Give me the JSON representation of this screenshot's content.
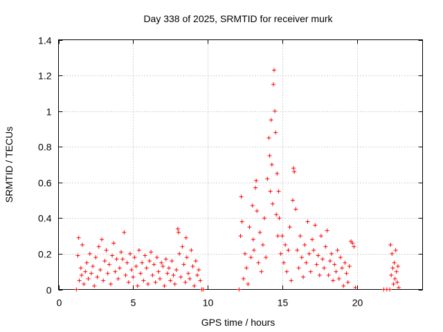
{
  "chart_data": {
    "type": "scatter",
    "title": "Day 338 of 2025, SRMTID for receiver murk",
    "xlabel": "GPS time / hours",
    "ylabel": "SRMTID / TECUs",
    "xlim": [
      0,
      24.4
    ],
    "ylim": [
      0,
      1.4
    ],
    "xticks": [
      0,
      5,
      10,
      15,
      20
    ],
    "xtick_labels": [
      "0",
      "5",
      "10",
      "15",
      "20"
    ],
    "yticks": [
      0,
      0.2,
      0.4,
      0.6,
      0.8,
      1.0,
      1.2,
      1.4
    ],
    "ytick_labels": [
      "0",
      "0.2",
      "0.4",
      "0.6",
      "0.8",
      "1",
      "1.2",
      "1.4"
    ],
    "grid": true,
    "marker": "plus",
    "marker_color": "#ff0000",
    "series": [
      {
        "name": "SRMTID",
        "points": [
          [
            1.2,
            0.0
          ],
          [
            1.3,
            0.19
          ],
          [
            1.35,
            0.29
          ],
          [
            1.4,
            0.05
          ],
          [
            1.5,
            0.12
          ],
          [
            1.55,
            0.08
          ],
          [
            1.6,
            0.25
          ],
          [
            1.7,
            0.03
          ],
          [
            1.8,
            0.1
          ],
          [
            1.9,
            0.15
          ],
          [
            2.0,
            0.06
          ],
          [
            2.1,
            0.2
          ],
          [
            2.2,
            0.09
          ],
          [
            2.3,
            0.13
          ],
          [
            2.4,
            0.02
          ],
          [
            2.5,
            0.18
          ],
          [
            2.6,
            0.07
          ],
          [
            2.7,
            0.24
          ],
          [
            2.8,
            0.11
          ],
          [
            2.9,
            0.28
          ],
          [
            3.0,
            0.05
          ],
          [
            3.1,
            0.16
          ],
          [
            3.2,
            0.22
          ],
          [
            3.3,
            0.09
          ],
          [
            3.4,
            0.14
          ],
          [
            3.5,
            0.03
          ],
          [
            3.6,
            0.19
          ],
          [
            3.7,
            0.26
          ],
          [
            3.8,
            0.1
          ],
          [
            3.9,
            0.17
          ],
          [
            4.0,
            0.06
          ],
          [
            4.1,
            0.12
          ],
          [
            4.2,
            0.21
          ],
          [
            4.3,
            0.17
          ],
          [
            4.4,
            0.32
          ],
          [
            4.5,
            0.08
          ],
          [
            4.6,
            0.15
          ],
          [
            4.7,
            0.04
          ],
          [
            4.8,
            0.2
          ],
          [
            4.9,
            0.11
          ],
          [
            5.0,
            0.07
          ],
          [
            5.1,
            0.18
          ],
          [
            5.2,
            0.13
          ],
          [
            5.3,
            0.02
          ],
          [
            5.4,
            0.22
          ],
          [
            5.5,
            0.09
          ],
          [
            5.6,
            0.15
          ],
          [
            5.7,
            0.05
          ],
          [
            5.8,
            0.19
          ],
          [
            5.9,
            0.12
          ],
          [
            6.0,
            0.03
          ],
          [
            6.1,
            0.16
          ],
          [
            6.2,
            0.21
          ],
          [
            6.3,
            0.08
          ],
          [
            6.4,
            0.14
          ],
          [
            6.5,
            0.04
          ],
          [
            6.6,
            0.18
          ],
          [
            6.7,
            0.1
          ],
          [
            6.8,
            0.06
          ],
          [
            6.9,
            0.15
          ],
          [
            7.0,
            0.13
          ],
          [
            7.1,
            0.02
          ],
          [
            7.2,
            0.17
          ],
          [
            7.3,
            0.09
          ],
          [
            7.4,
            0.12
          ],
          [
            7.5,
            0.05
          ],
          [
            7.6,
            0.16
          ],
          [
            7.7,
            0.08
          ],
          [
            7.8,
            0.03
          ],
          [
            7.9,
            0.11
          ],
          [
            8.0,
            0.34
          ],
          [
            8.05,
            0.32
          ],
          [
            8.1,
            0.2
          ],
          [
            8.2,
            0.07
          ],
          [
            8.3,
            0.24
          ],
          [
            8.4,
            0.14
          ],
          [
            8.5,
            0.04
          ],
          [
            8.55,
            0.29
          ],
          [
            8.6,
            0.18
          ],
          [
            8.7,
            0.09
          ],
          [
            8.8,
            0.06
          ],
          [
            8.9,
            0.22
          ],
          [
            9.0,
            0.13
          ],
          [
            9.1,
            0.02
          ],
          [
            9.2,
            0.16
          ],
          [
            9.3,
            0.08
          ],
          [
            9.4,
            0.11
          ],
          [
            9.5,
            0.05
          ],
          [
            9.6,
            0.0
          ],
          [
            9.7,
            0.0
          ],
          [
            12.1,
            0.0
          ],
          [
            12.2,
            0.3
          ],
          [
            12.25,
            0.52
          ],
          [
            12.3,
            0.38
          ],
          [
            12.4,
            0.06
          ],
          [
            12.5,
            0.2
          ],
          [
            12.6,
            0.12
          ],
          [
            12.7,
            0.03
          ],
          [
            12.8,
            0.35
          ],
          [
            12.9,
            0.18
          ],
          [
            13.0,
            0.47
          ],
          [
            13.05,
            0.28
          ],
          [
            13.1,
            0.22
          ],
          [
            13.2,
            0.57
          ],
          [
            13.25,
            0.61
          ],
          [
            13.3,
            0.44
          ],
          [
            13.4,
            0.15
          ],
          [
            13.5,
            0.32
          ],
          [
            13.6,
            0.1
          ],
          [
            13.7,
            0.25
          ],
          [
            13.8,
            0.4
          ],
          [
            13.9,
            0.18
          ],
          [
            14.0,
            0.62
          ],
          [
            14.1,
            0.85
          ],
          [
            14.15,
            0.75
          ],
          [
            14.2,
            0.55
          ],
          [
            14.25,
            0.95
          ],
          [
            14.3,
            0.7
          ],
          [
            14.35,
            0.48
          ],
          [
            14.4,
            1.15
          ],
          [
            14.45,
            1.23
          ],
          [
            14.5,
            1.0
          ],
          [
            14.55,
            0.88
          ],
          [
            14.6,
            0.42
          ],
          [
            14.65,
            0.65
          ],
          [
            14.7,
            0.3
          ],
          [
            14.75,
            0.55
          ],
          [
            14.8,
            0.4
          ],
          [
            14.9,
            0.2
          ],
          [
            15.0,
            0.3
          ],
          [
            15.1,
            0.15
          ],
          [
            15.2,
            0.25
          ],
          [
            15.3,
            0.1
          ],
          [
            15.4,
            0.22
          ],
          [
            15.5,
            0.35
          ],
          [
            15.6,
            0.05
          ],
          [
            15.7,
            0.5
          ],
          [
            15.75,
            0.68
          ],
          [
            15.8,
            0.66
          ],
          [
            15.9,
            0.45
          ],
          [
            16.0,
            0.22
          ],
          [
            16.1,
            0.12
          ],
          [
            16.2,
            0.3
          ],
          [
            16.3,
            0.18
          ],
          [
            16.4,
            0.07
          ],
          [
            16.5,
            0.25
          ],
          [
            16.6,
            0.15
          ],
          [
            16.7,
            0.38
          ],
          [
            16.8,
            0.2
          ],
          [
            16.9,
            0.1
          ],
          [
            17.0,
            0.28
          ],
          [
            17.1,
            0.22
          ],
          [
            17.2,
            0.36
          ],
          [
            17.3,
            0.14
          ],
          [
            17.4,
            0.19
          ],
          [
            17.5,
            0.08
          ],
          [
            17.6,
            0.3
          ],
          [
            17.7,
            0.17
          ],
          [
            17.8,
            0.12
          ],
          [
            17.9,
            0.24
          ],
          [
            18.0,
            0.33
          ],
          [
            18.1,
            0.08
          ],
          [
            18.2,
            0.16
          ],
          [
            18.3,
            0.2
          ],
          [
            18.4,
            0.05
          ],
          [
            18.5,
            0.14
          ],
          [
            18.6,
            0.1
          ],
          [
            18.7,
            0.22
          ],
          [
            18.8,
            0.06
          ],
          [
            18.9,
            0.18
          ],
          [
            19.0,
            0.12
          ],
          [
            19.1,
            0.02
          ],
          [
            19.2,
            0.15
          ],
          [
            19.3,
            0.09
          ],
          [
            19.4,
            0.04
          ],
          [
            19.5,
            0.13
          ],
          [
            19.6,
            0.27
          ],
          [
            19.7,
            0.26
          ],
          [
            19.8,
            0.24
          ],
          [
            19.9,
            0.01
          ],
          [
            21.8,
            0.0
          ],
          [
            22.0,
            0.0
          ],
          [
            22.2,
            0.0
          ],
          [
            22.25,
            0.25
          ],
          [
            22.3,
            0.08
          ],
          [
            22.35,
            0.2
          ],
          [
            22.4,
            0.12
          ],
          [
            22.45,
            0.03
          ],
          [
            22.5,
            0.15
          ],
          [
            22.55,
            0.06
          ],
          [
            22.6,
            0.22
          ],
          [
            22.65,
            0.1
          ],
          [
            22.7,
            0.04
          ],
          [
            22.75,
            0.13
          ],
          [
            22.8,
            0.01
          ]
        ]
      }
    ]
  }
}
